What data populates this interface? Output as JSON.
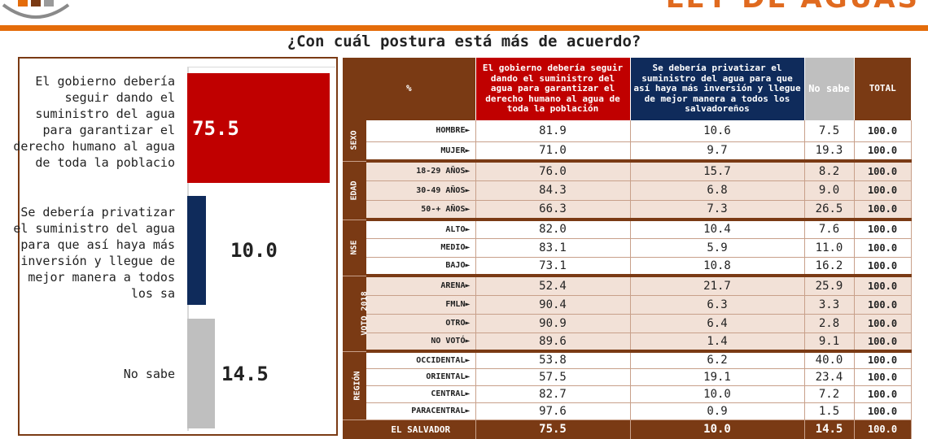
{
  "header": {
    "brand_title": "LEY DE AGUAS",
    "question": "¿Con cuál postura está más de acuerdo?"
  },
  "colors": {
    "accent": "#e46c0a",
    "brown": "#7a3a14",
    "red": "#c00000",
    "navy": "#0f2b5b",
    "gray": "#bfbfbf",
    "shade": "#f2e1d7"
  },
  "chart_data": [
    {
      "type": "bar",
      "orientation": "horizontal",
      "categories": [
        "El gobierno debería seguir dando el suministro del agua para garantizar el derecho humano al agua de toda la poblacio",
        "Se debería privatizar el suministro del agua para que así haya más inversión y llegue de mejor manera a todos los sa",
        "No sabe"
      ],
      "values": [
        75.5,
        10.0,
        14.5
      ],
      "value_labels": [
        "75.5",
        "10.0",
        "14.5"
      ],
      "colors": [
        "#c00000",
        "#0f2b5b",
        "#bfbfbf"
      ],
      "xlim": [
        0,
        100
      ]
    },
    {
      "type": "table",
      "columns": [
        "%",
        "El gobierno debería seguir dando el suministro del agua para garantizar el derecho humano al agua de toda la población",
        "Se debería privatizar el suministro del agua para que así haya más inversión y llegue de mejor manera a todos los salvadoreños",
        "No sabe",
        "TOTAL"
      ],
      "groups": [
        {
          "name": "SEXO",
          "rows": [
            {
              "label": "HOMBRE►",
              "values": [
                "81.9",
                "10.6",
                "7.5",
                "100.0"
              ]
            },
            {
              "label": "MUJER►",
              "values": [
                "71.0",
                "9.7",
                "19.3",
                "100.0"
              ]
            }
          ]
        },
        {
          "name": "EDAD",
          "rows": [
            {
              "label": "18-29 AÑOS►",
              "values": [
                "76.0",
                "15.7",
                "8.2",
                "100.0"
              ]
            },
            {
              "label": "30-49 AÑOS►",
              "values": [
                "84.3",
                "6.8",
                "9.0",
                "100.0"
              ]
            },
            {
              "label": "50-+ AÑOS►",
              "values": [
                "66.3",
                "7.3",
                "26.5",
                "100.0"
              ]
            }
          ]
        },
        {
          "name": "NSE",
          "rows": [
            {
              "label": "ALTO►",
              "values": [
                "82.0",
                "10.4",
                "7.6",
                "100.0"
              ]
            },
            {
              "label": "MEDIO►",
              "values": [
                "83.1",
                "5.9",
                "11.0",
                "100.0"
              ]
            },
            {
              "label": "BAJO►",
              "values": [
                "73.1",
                "10.8",
                "16.2",
                "100.0"
              ]
            }
          ]
        },
        {
          "name": "VOTO 2018",
          "rows": [
            {
              "label": "ARENA►",
              "values": [
                "52.4",
                "21.7",
                "25.9",
                "100.0"
              ]
            },
            {
              "label": "FMLN►",
              "values": [
                "90.4",
                "6.3",
                "3.3",
                "100.0"
              ]
            },
            {
              "label": "OTRO►",
              "values": [
                "90.9",
                "6.4",
                "2.8",
                "100.0"
              ]
            },
            {
              "label": "NO VOTÓ►",
              "values": [
                "89.6",
                "1.4",
                "9.1",
                "100.0"
              ]
            }
          ]
        },
        {
          "name": "REGIÓN",
          "rows": [
            {
              "label": "OCCIDENTAL►",
              "values": [
                "53.8",
                "6.2",
                "40.0",
                "100.0"
              ]
            },
            {
              "label": "ORIENTAL►",
              "values": [
                "57.5",
                "19.1",
                "23.4",
                "100.0"
              ]
            },
            {
              "label": "CENTRAL►",
              "values": [
                "82.7",
                "10.0",
                "7.2",
                "100.0"
              ]
            },
            {
              "label": "PARACENTRAL►",
              "values": [
                "97.6",
                "0.9",
                "1.5",
                "100.0"
              ]
            }
          ]
        }
      ],
      "total": {
        "label": "EL SALVADOR",
        "values": [
          "75.5",
          "10.0",
          "14.5",
          "100.0"
        ]
      }
    }
  ]
}
